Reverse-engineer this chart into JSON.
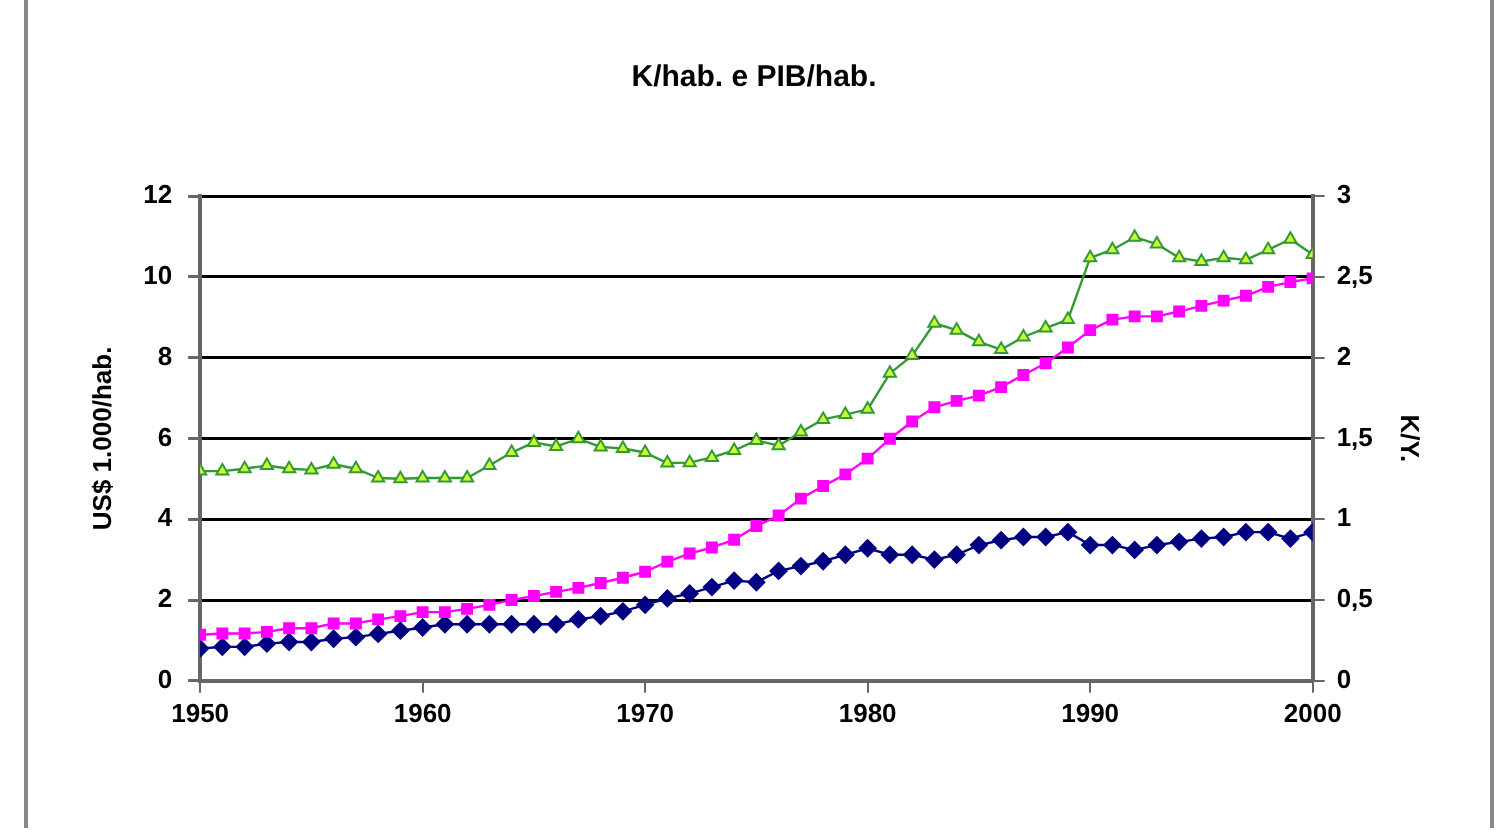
{
  "chart_data": {
    "type": "line",
    "title": "K/hab. e PIB/hab.",
    "ylabel": "US$ 1.000/hab.",
    "y2label": "K/Y.",
    "x": [
      1950,
      1951,
      1952,
      1953,
      1954,
      1955,
      1956,
      1957,
      1958,
      1959,
      1960,
      1961,
      1962,
      1963,
      1964,
      1965,
      1966,
      1967,
      1968,
      1969,
      1970,
      1971,
      1972,
      1973,
      1974,
      1975,
      1976,
      1977,
      1978,
      1979,
      1980,
      1981,
      1982,
      1983,
      1984,
      1985,
      1986,
      1987,
      1988,
      1989,
      1990,
      1991,
      1992,
      1993,
      1994,
      1995,
      1996,
      1997,
      1998,
      1999,
      2000
    ],
    "series": [
      {
        "color": "#339933",
        "marker": "triangle",
        "values": [
          5.19,
          5.19,
          5.25,
          5.33,
          5.25,
          5.22,
          5.36,
          5.25,
          5.02,
          5.0,
          5.02,
          5.02,
          5.02,
          5.33,
          5.65,
          5.9,
          5.8,
          5.99,
          5.79,
          5.75,
          5.65,
          5.39,
          5.4,
          5.53,
          5.7,
          5.95,
          5.82,
          6.16,
          6.47,
          6.59,
          6.72,
          7.61,
          8.05,
          8.85,
          8.68,
          8.39,
          8.2,
          8.51,
          8.73,
          8.94,
          10.47,
          10.67,
          10.98,
          10.81,
          10.47,
          10.38,
          10.47,
          10.42,
          10.67,
          10.93,
          10.55
        ]
      },
      {
        "color": "#ff00ff",
        "marker": "square",
        "values": [
          1.14,
          1.17,
          1.17,
          1.21,
          1.3,
          1.3,
          1.42,
          1.42,
          1.52,
          1.6,
          1.7,
          1.7,
          1.78,
          1.88,
          2.0,
          2.1,
          2.2,
          2.3,
          2.42,
          2.55,
          2.7,
          2.95,
          3.15,
          3.3,
          3.49,
          3.83,
          4.09,
          4.51,
          4.82,
          5.11,
          5.5,
          5.99,
          6.42,
          6.77,
          6.93,
          7.06,
          7.27,
          7.57,
          7.86,
          8.25,
          8.68,
          8.94,
          9.02,
          9.02,
          9.14,
          9.28,
          9.41,
          9.53,
          9.75,
          9.87,
          9.96
        ]
      },
      {
        "color": "#000080",
        "marker": "diamond",
        "axis": "y2",
        "values": [
          0.2,
          0.21,
          0.21,
          0.23,
          0.24,
          0.24,
          0.26,
          0.27,
          0.29,
          0.31,
          0.33,
          0.35,
          0.35,
          0.35,
          0.35,
          0.35,
          0.35,
          0.38,
          0.4,
          0.43,
          0.47,
          0.51,
          0.54,
          0.58,
          0.62,
          0.61,
          0.68,
          0.71,
          0.74,
          0.78,
          0.82,
          0.78,
          0.78,
          0.75,
          0.78,
          0.84,
          0.87,
          0.89,
          0.89,
          0.92,
          0.84,
          0.84,
          0.81,
          0.84,
          0.86,
          0.88,
          0.89,
          0.92,
          0.92,
          0.88,
          0.92
        ]
      }
    ],
    "xlim": [
      1950,
      2000
    ],
    "xticks": [
      1950,
      1960,
      1970,
      1980,
      1990,
      2000
    ],
    "ylim": [
      0,
      12
    ],
    "yticks": [
      0,
      2,
      4,
      6,
      8,
      10,
      12
    ],
    "y2lim": [
      0,
      3
    ],
    "y2ticks": [
      0,
      {
        "value": 0.5,
        "label": "0,5"
      },
      1,
      {
        "value": 1.5,
        "label": "1,5"
      },
      2,
      {
        "value": 2.5,
        "label": "2,5"
      },
      3
    ],
    "grid": "y",
    "legend": false,
    "line_style": "solid"
  }
}
